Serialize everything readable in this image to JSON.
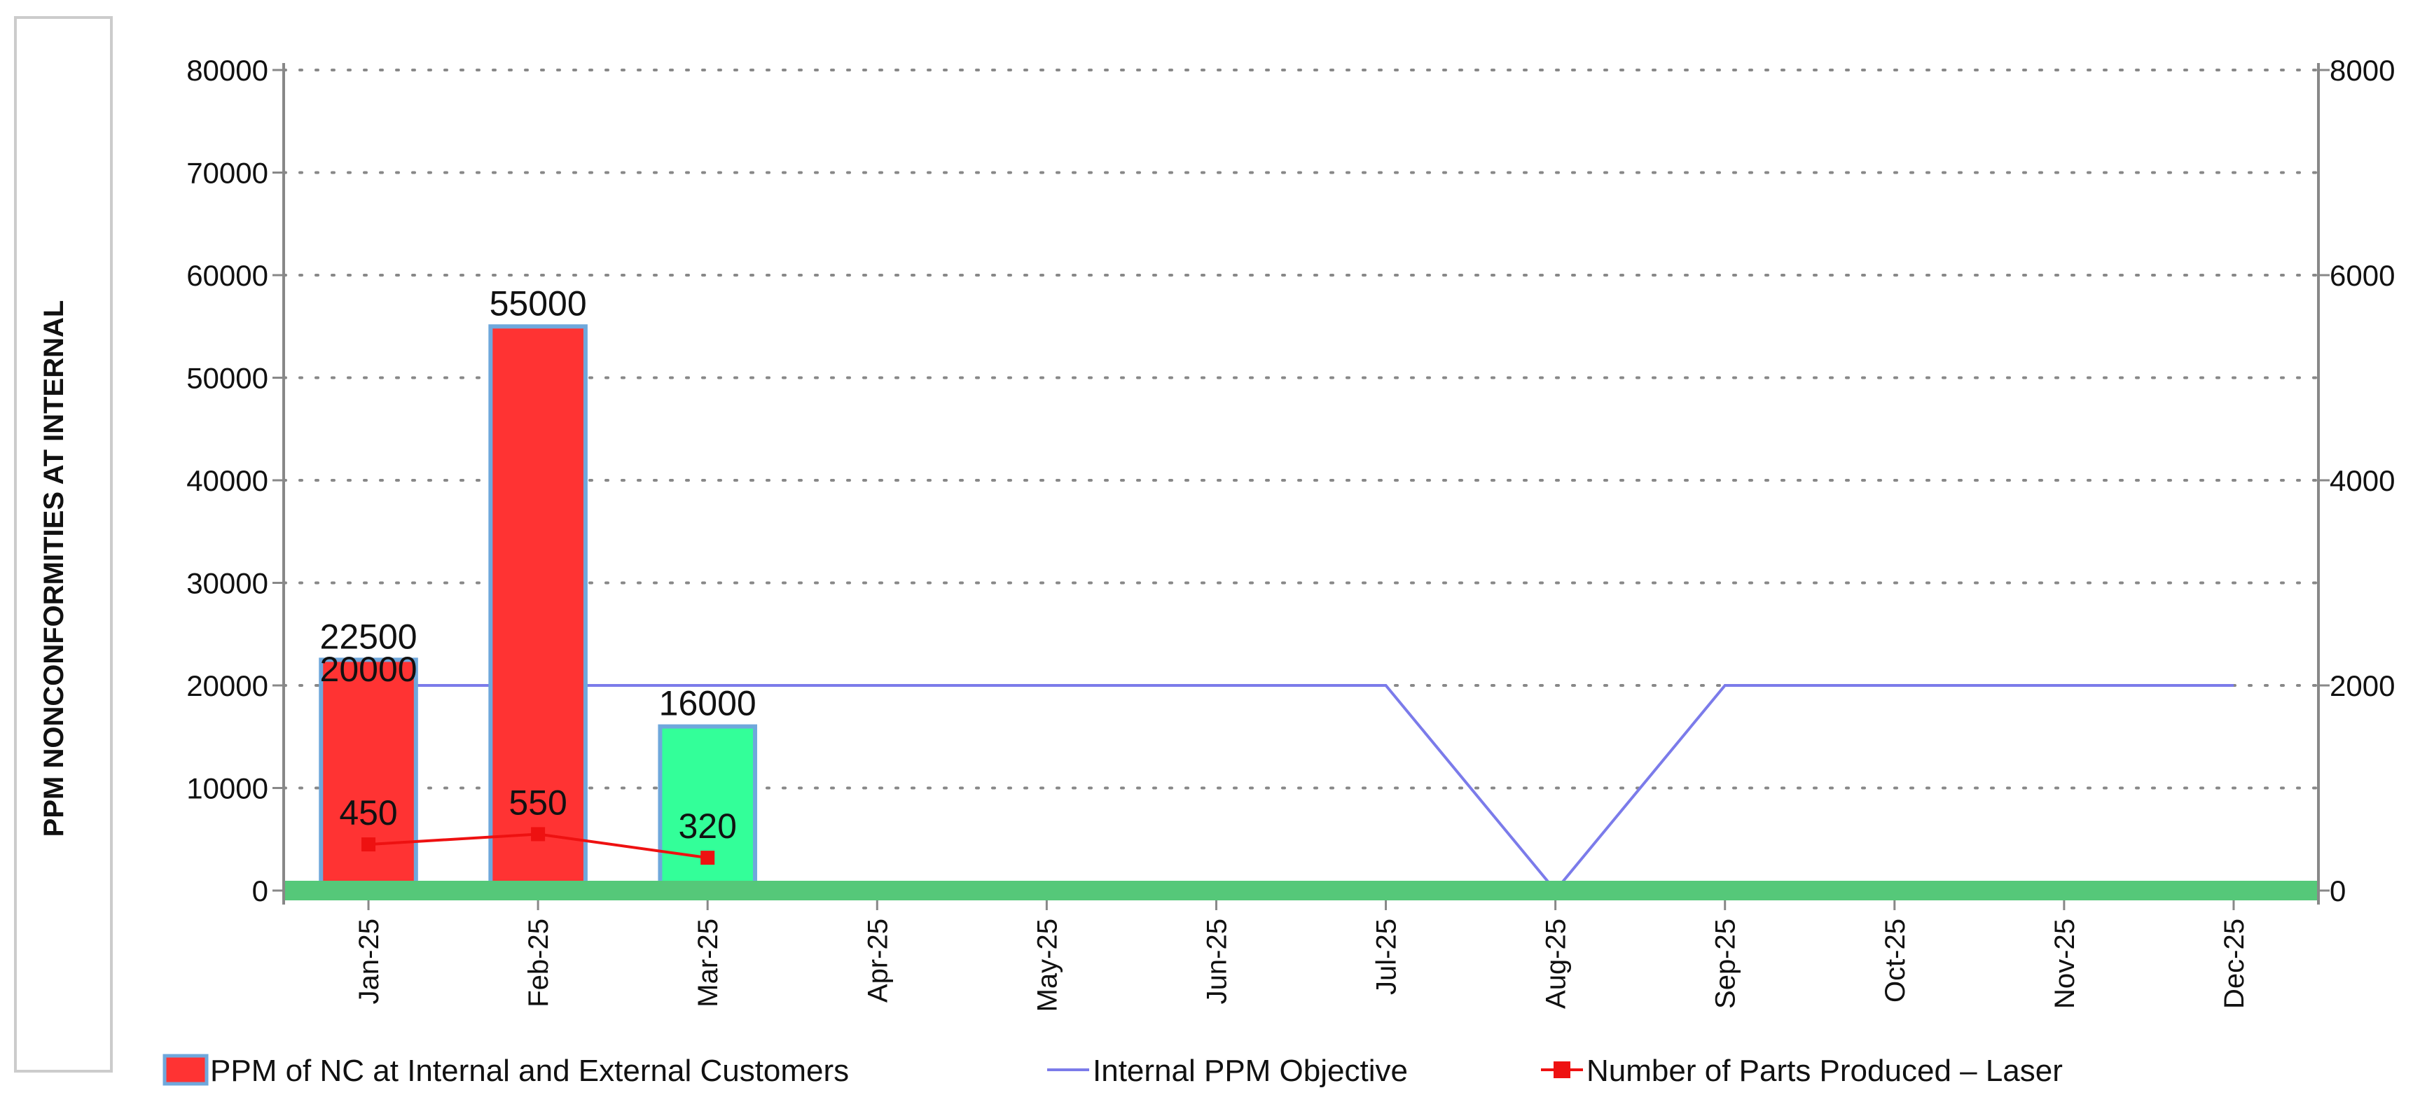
{
  "chart_data": {
    "type": "bar",
    "title": "",
    "xlabel": "",
    "ylabel": "PPM NONCONFORMITIES AT INTERNAL",
    "ylim": [
      0,
      80000
    ],
    "y2lim": [
      0,
      8000
    ],
    "yticks": [
      "0",
      "10000",
      "20000",
      "30000",
      "40000",
      "50000",
      "60000",
      "70000",
      "80000"
    ],
    "y2ticks": [
      "0",
      "2000",
      "4000",
      "6000",
      "8000"
    ],
    "grid": true,
    "legend_position": "bottom",
    "categories": [
      "Jan-25",
      "Feb-25",
      "Mar-25",
      "Apr-25",
      "May-25",
      "Jun-25",
      "Jul-25",
      "Aug-25",
      "Sep-25",
      "Oct-25",
      "Nov-25",
      "Dec-25"
    ],
    "series": [
      {
        "name": "PPM of NC at Internal and External Customers",
        "kind": "bar",
        "axis": "left",
        "values": [
          22500,
          55000,
          16000,
          null,
          null,
          null,
          null,
          null,
          null,
          null,
          null,
          null
        ],
        "labels": [
          "22500",
          "55000",
          "16000"
        ],
        "colors": [
          "#ff3333",
          "#ff3333",
          "#33ff99"
        ],
        "legend_color": "#ff3333"
      },
      {
        "name": "Internal PPM Objective",
        "kind": "line",
        "axis": "left",
        "values": [
          20000,
          20000,
          20000,
          20000,
          20000,
          20000,
          20000,
          0,
          20000,
          20000,
          20000,
          20000
        ],
        "labels": [
          "20000"
        ],
        "color": "#7b7bea"
      },
      {
        "name": "Number of Parts Produced – Laser",
        "kind": "line",
        "axis": "left",
        "values": [
          450,
          550,
          320,
          null,
          null,
          null,
          null,
          null,
          null,
          null,
          null,
          null
        ],
        "labels": [
          "450",
          "550",
          "320"
        ],
        "color": "#ee1111"
      }
    ],
    "colors": {
      "baseline_band": "#55c879",
      "axis": "#888888",
      "grid": "#888888",
      "bar_border": "#6fa8dc"
    }
  }
}
